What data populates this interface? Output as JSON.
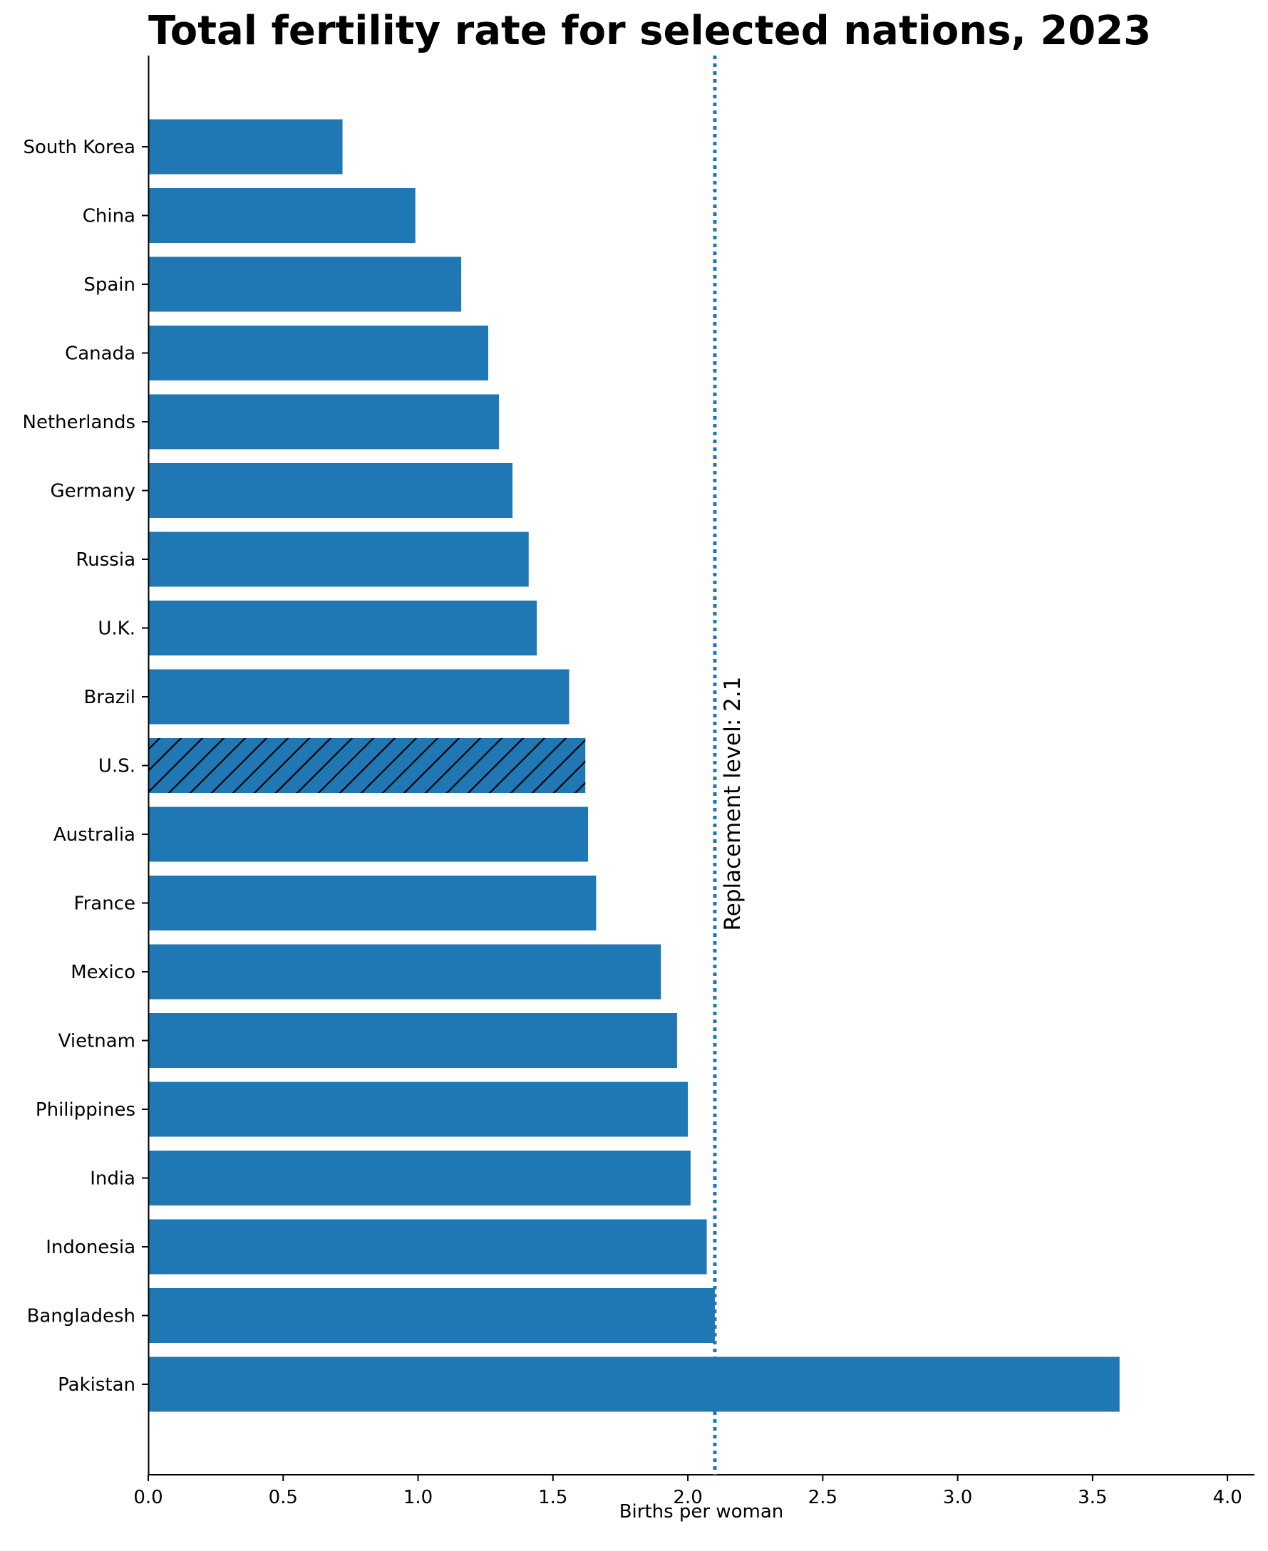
{
  "chart_data": {
    "type": "bar",
    "orientation": "horizontal",
    "title": "Total fertility rate for selected nations, 2023",
    "xlabel": "Births per woman",
    "ylabel": "",
    "xlim": [
      0,
      4.1
    ],
    "xticks": [
      "0.0",
      "0.5",
      "1.0",
      "1.5",
      "2.0",
      "2.5",
      "3.0",
      "3.5",
      "4.0"
    ],
    "categories": [
      "South Korea",
      "China",
      "Spain",
      "Canada",
      "Netherlands",
      "Germany",
      "Russia",
      "U.K.",
      "Brazil",
      "U.S.",
      "Australia",
      "France",
      "Mexico",
      "Vietnam",
      "Philippines",
      "India",
      "Indonesia",
      "Bangladesh",
      "Pakistan"
    ],
    "values": [
      0.72,
      0.99,
      1.16,
      1.26,
      1.3,
      1.35,
      1.41,
      1.44,
      1.56,
      1.62,
      1.63,
      1.66,
      1.9,
      1.96,
      2.0,
      2.01,
      2.07,
      2.1,
      3.6
    ],
    "highlighted_category": "U.S.",
    "bar_color": "#1f77b4",
    "reference_line": {
      "value": 2.1,
      "label": "Replacement level: 2.1",
      "color": "#1f77b4",
      "style": "dotted"
    },
    "grid": false
  }
}
